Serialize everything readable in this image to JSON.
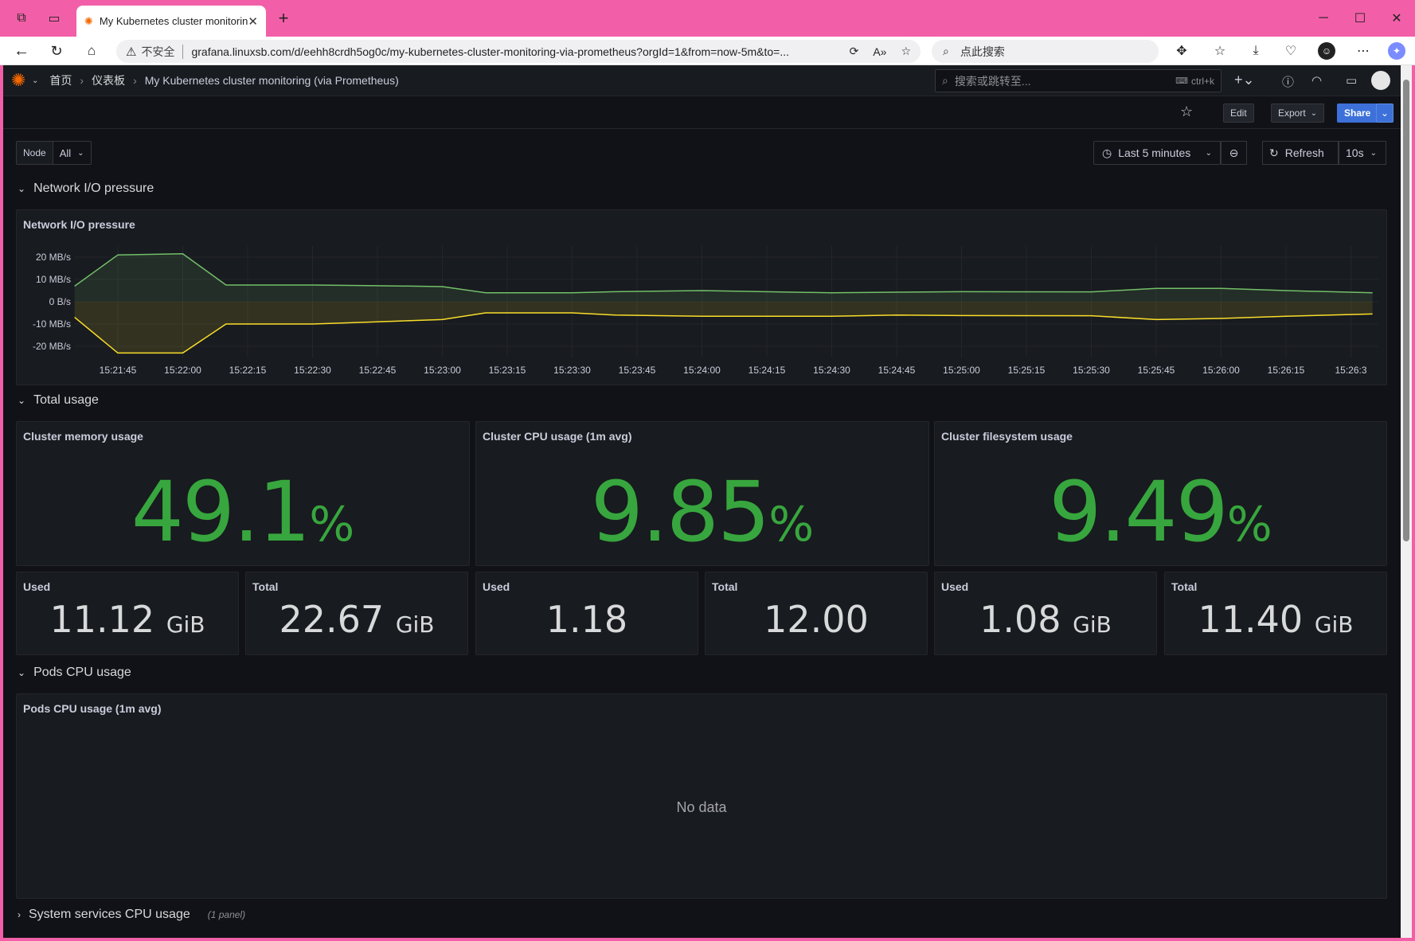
{
  "browser": {
    "tab_title": "My Kubernetes cluster monitoring",
    "security_label": "不安全",
    "url": "grafana.linuxsb.com/d/eehh8crdh5og0c/my-kubernetes-cluster-monitoring-via-prometheus?orgId=1&from=now-5m&to=...",
    "search_placeholder": "点此搜索"
  },
  "grafana": {
    "breadcrumb": [
      "首页",
      "仪表板",
      "My Kubernetes cluster monitoring (via Prometheus)"
    ],
    "search_placeholder": "搜索或跳转至...",
    "search_shortcut": "ctrl+k",
    "edit_label": "Edit",
    "export_label": "Export",
    "share_label": "Share"
  },
  "controls": {
    "node_label": "Node",
    "node_value": "All",
    "time_range": "Last 5 minutes",
    "refresh_label": "Refresh",
    "refresh_interval": "10s"
  },
  "rows": {
    "network": "Network I/O pressure",
    "total": "Total usage",
    "pods": "Pods CPU usage",
    "system": "System services CPU usage",
    "system_note": "(1 panel)"
  },
  "panels": {
    "network_title": "Network I/O pressure",
    "memory_title": "Cluster memory usage",
    "memory_value": "49.1",
    "cpu_title": "Cluster CPU usage (1m avg)",
    "cpu_value": "9.85",
    "fs_title": "Cluster filesystem usage",
    "fs_value": "9.49",
    "percent": "%",
    "pods_title": "Pods CPU usage (1m avg)",
    "no_data": "No data"
  },
  "stats": [
    {
      "label": "Used",
      "value": "11.12",
      "unit": "GiB"
    },
    {
      "label": "Total",
      "value": "22.67",
      "unit": "GiB"
    },
    {
      "label": "Used",
      "value": "1.18",
      "unit": ""
    },
    {
      "label": "Total",
      "value": "12.00",
      "unit": ""
    },
    {
      "label": "Used",
      "value": "1.08",
      "unit": "GiB"
    },
    {
      "label": "Total",
      "value": "11.40",
      "unit": "GiB"
    }
  ],
  "colors": {
    "green": "#37a63e",
    "received": "#73bf69",
    "transmitted": "#fade2a",
    "share": "#3d71d9"
  },
  "chart_data": {
    "type": "line",
    "title": "Network I/O pressure",
    "ylim": [
      -25,
      25
    ],
    "y_ticks": [
      "20 MB/s",
      "10 MB/s",
      "0 B/s",
      "-10 MB/s",
      "-20 MB/s"
    ],
    "x_ticks": [
      "15:21:45",
      "15:22:00",
      "15:22:15",
      "15:22:30",
      "15:22:45",
      "15:23:00",
      "15:23:15",
      "15:23:30",
      "15:23:45",
      "15:24:00",
      "15:24:15",
      "15:24:30",
      "15:24:45",
      "15:25:00",
      "15:25:15",
      "15:25:30",
      "15:25:45",
      "15:26:00",
      "15:26:15",
      "15:26:3"
    ],
    "x": [
      "15:21:35",
      "15:21:45",
      "15:22:00",
      "15:22:10",
      "15:22:30",
      "15:22:45",
      "15:23:00",
      "15:23:10",
      "15:23:30",
      "15:23:40",
      "15:24:00",
      "15:24:30",
      "15:24:45",
      "15:25:00",
      "15:25:30",
      "15:25:45",
      "15:26:00",
      "15:26:15",
      "15:26:35"
    ],
    "series": [
      {
        "name": "",
        "color": "#73bf69",
        "values": [
          7,
          21,
          21.5,
          7.5,
          7.5,
          7.2,
          6.8,
          4,
          4,
          4.5,
          5,
          4,
          4.3,
          4.5,
          4.4,
          6,
          6,
          5,
          4
        ]
      },
      {
        "name": "",
        "color": "#fade2a",
        "values": [
          -7,
          -23,
          -23,
          -10,
          -10,
          -9,
          -8,
          -5,
          -5,
          -6,
          -6.5,
          -6.5,
          -6,
          -6.2,
          -6.3,
          -8,
          -7.5,
          -6.5,
          -5.5
        ]
      }
    ]
  }
}
